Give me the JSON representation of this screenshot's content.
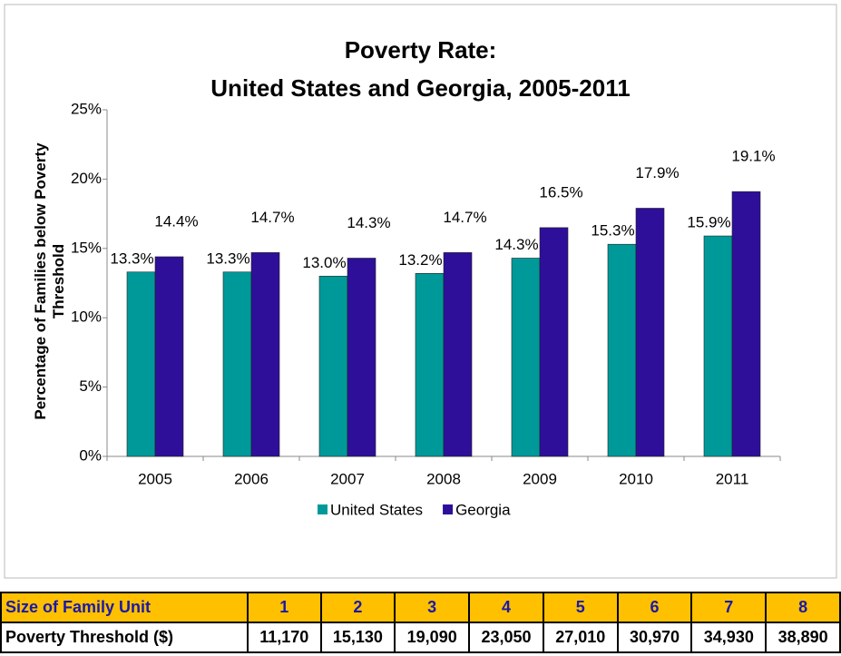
{
  "chart_data": {
    "type": "bar",
    "title": "Poverty Rate:\nUnited States and Georgia, 2005-2011",
    "y_label": "Percentage of Families below Poverty\nThreshold",
    "categories": [
      "2005",
      "2006",
      "2007",
      "2008",
      "2009",
      "2010",
      "2011"
    ],
    "series": [
      {
        "name": "United States",
        "color": "#009999",
        "values": [
          13.3,
          13.3,
          13.0,
          13.2,
          14.3,
          15.3,
          15.9
        ],
        "value_labels": [
          "13.3%",
          "13.3%",
          "13.0%",
          "13.2%",
          "14.3%",
          "15.3%",
          "15.9%"
        ]
      },
      {
        "name": "Georgia",
        "color": "#2e0f99",
        "values": [
          14.4,
          14.7,
          14.3,
          14.7,
          16.5,
          17.9,
          19.1
        ],
        "value_labels": [
          "14.4%",
          "14.7%",
          "14.3%",
          "14.7%",
          "16.5%",
          "17.9%",
          "19.1%"
        ]
      }
    ],
    "ylim": [
      0,
      25
    ],
    "yticks": [
      {
        "value": 0,
        "label": "0%"
      },
      {
        "value": 5,
        "label": "5%"
      },
      {
        "value": 10,
        "label": "10%"
      },
      {
        "value": 15,
        "label": "15%"
      },
      {
        "value": 20,
        "label": "20%"
      },
      {
        "value": 25,
        "label": "25%"
      }
    ],
    "legend": "bottom"
  },
  "table": {
    "rows": [
      [
        "Size of Family Unit",
        "1",
        "2",
        "3",
        "4",
        "5",
        "6",
        "7",
        "8"
      ],
      [
        "Poverty Threshold ($)",
        "11,170",
        "15,130",
        "19,090",
        "23,050",
        "27,010",
        "30,970",
        "34,930",
        "38,890"
      ]
    ]
  }
}
